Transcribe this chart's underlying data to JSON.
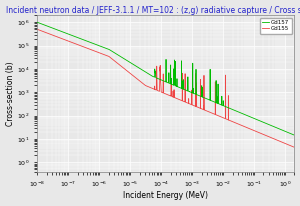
{
  "title": "Incident neutron data / JEFF-3.1.1 / MT=102 : (z,g) radiative capture / Cross section",
  "xlabel": "Incident Energy (MeV)",
  "ylabel": "Cross-section (b)",
  "xmin": 1e-08,
  "xmax": 2.0,
  "ymin": 0.4,
  "ymax": 2000000,
  "legend": [
    "Gd157",
    "Gd155"
  ],
  "color_gd157": "#00bb00",
  "color_gd155": "#ee4444",
  "bg_color": "#e8e8e8",
  "title_color": "#2222cc",
  "title_fontsize": 5.5,
  "label_fontsize": 5.5,
  "tick_fontsize": 4.5
}
